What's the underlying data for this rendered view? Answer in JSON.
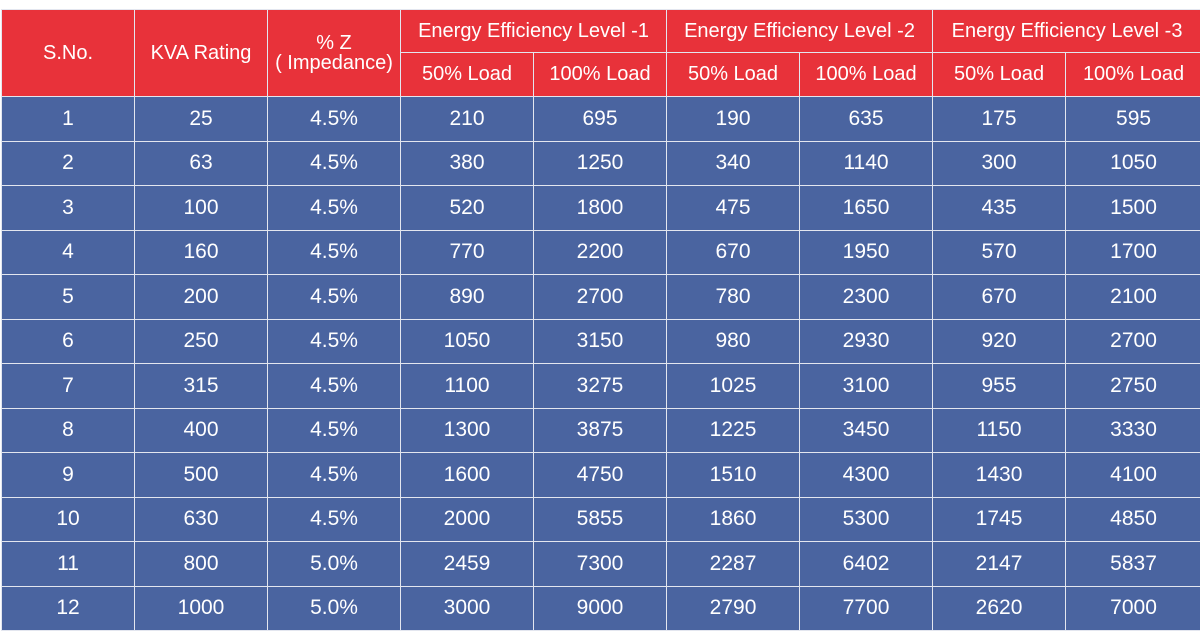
{
  "table": {
    "headers": {
      "sno": "S.No.",
      "kva": "KVA Rating",
      "impedance_line1": "% Z",
      "impedance_line2": "( Impedance)",
      "groups": [
        {
          "label": "Energy Efficiency Level -1",
          "sub": [
            "50% Load",
            "100% Load"
          ]
        },
        {
          "label": "Energy Efficiency Level -2",
          "sub": [
            "50% Load",
            "100% Load"
          ]
        },
        {
          "label": "Energy Efficiency Level -3",
          "sub": [
            "50% Load",
            "100% Load"
          ]
        }
      ]
    },
    "rows": [
      [
        "1",
        "25",
        "4.5%",
        "210",
        "695",
        "190",
        "635",
        "175",
        "595"
      ],
      [
        "2",
        "63",
        "4.5%",
        "380",
        "1250",
        "340",
        "1140",
        "300",
        "1050"
      ],
      [
        "3",
        "100",
        "4.5%",
        "520",
        "1800",
        "475",
        "1650",
        "435",
        "1500"
      ],
      [
        "4",
        "160",
        "4.5%",
        "770",
        "2200",
        "670",
        "1950",
        "570",
        "1700"
      ],
      [
        "5",
        "200",
        "4.5%",
        "890",
        "2700",
        "780",
        "2300",
        "670",
        "2100"
      ],
      [
        "6",
        "250",
        "4.5%",
        "1050",
        "3150",
        "980",
        "2930",
        "920",
        "2700"
      ],
      [
        "7",
        "315",
        "4.5%",
        "1100",
        "3275",
        "1025",
        "3100",
        "955",
        "2750"
      ],
      [
        "8",
        "400",
        "4.5%",
        "1300",
        "3875",
        "1225",
        "3450",
        "1150",
        "3330"
      ],
      [
        "9",
        "500",
        "4.5%",
        "1600",
        "4750",
        "1510",
        "4300",
        "1430",
        "4100"
      ],
      [
        "10",
        "630",
        "4.5%",
        "2000",
        "5855",
        "1860",
        "5300",
        "1745",
        "4850"
      ],
      [
        "11",
        "800",
        "5.0%",
        "2459",
        "7300",
        "2287",
        "6402",
        "2147",
        "5837"
      ],
      [
        "12",
        "1000",
        "5.0%",
        "3000",
        "9000",
        "2790",
        "7700",
        "2620",
        "7000"
      ]
    ]
  },
  "colors": {
    "header_bg": "#e8323a",
    "body_bg": "#4a64a0",
    "grid_line": "#e3e6ef",
    "text": "#ffffff"
  }
}
